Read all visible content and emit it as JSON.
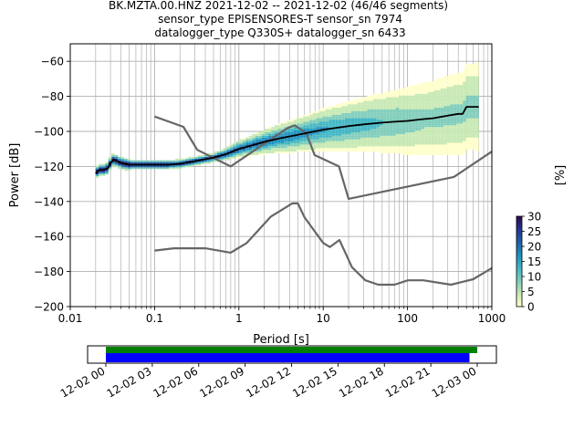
{
  "title_lines": [
    "BK.MZTA.00.HNZ   2021-12-02 -- 2021-12-02  (46/46 segments)",
    "sensor_type EPISENSORES-T sensor_sn 7974",
    "datalogger_type Q330S+ datalogger_sn 6433"
  ],
  "colors": {
    "noise_model": "#666666",
    "mean": "#000000",
    "green_bar": "#008000",
    "blue_bar": "#0000ff",
    "grid": "#b0b0b0",
    "colormap": [
      "#ffffcc",
      "#c7e9b4",
      "#7fcdbb",
      "#41b6c4",
      "#1d91c0",
      "#225ea8",
      "#253494",
      "#2c0a4b"
    ]
  },
  "chart_data": [
    {
      "type": "heatmap",
      "chart_kind": "probabilistic power spectral density",
      "xlabel": "Period [s]",
      "ylabel": "Power [dB]",
      "x_scale": "log",
      "xlim": [
        0.01,
        1000
      ],
      "ylim": [
        -200,
        -50
      ],
      "xticks": [
        0.01,
        0.1,
        1,
        10,
        100,
        1000
      ],
      "xtick_labels": [
        "0.01",
        "0.1",
        "1",
        "10",
        "100",
        "1000"
      ],
      "yticks": [
        -200,
        -180,
        -160,
        -140,
        -120,
        -100,
        -80,
        -60
      ],
      "ytick_labels": [
        "−200",
        "−180",
        "−160",
        "−140",
        "−120",
        "−100",
        "−80",
        "−60"
      ],
      "grid": true,
      "colorbar": {
        "label": "[%]",
        "range": [
          0,
          30
        ],
        "ticks": [
          0,
          5,
          10,
          15,
          20,
          25,
          30
        ],
        "tick_labels": [
          "0",
          "5",
          "10",
          "15",
          "20",
          "25",
          "30"
        ]
      },
      "series": [
        {
          "role": "mean",
          "x": [
            0.02,
            0.022,
            0.025,
            0.028,
            0.03,
            0.033,
            0.036,
            0.04,
            0.05,
            0.07,
            0.1,
            0.15,
            0.2,
            0.3,
            0.5,
            0.7,
            1,
            2,
            3,
            5,
            7,
            10,
            20,
            30,
            50,
            70,
            100,
            150,
            200,
            300,
            400,
            450,
            500,
            600,
            700
          ],
          "y": [
            -124,
            -122,
            -122,
            -121,
            -118,
            -116,
            -117,
            -118,
            -119,
            -119,
            -119,
            -119,
            -118.5,
            -117,
            -115,
            -113,
            -110,
            -106,
            -104,
            -102,
            -100.5,
            -99,
            -97,
            -96,
            -95,
            -94.5,
            -94,
            -93,
            -92.5,
            -91,
            -90,
            -90,
            -86,
            -86,
            -86
          ]
        },
        {
          "role": "high-noise-model",
          "x": [
            0.1,
            0.22,
            0.32,
            0.8,
            3.8,
            4.6,
            6.3,
            7.9,
            15.4,
            20,
            354.8,
            1000
          ],
          "y": [
            -91.5,
            -97.4,
            -110.5,
            -120,
            -98,
            -96.5,
            -101,
            -113.5,
            -120,
            -138.5,
            -126,
            -111.5
          ]
        },
        {
          "role": "low-noise-model",
          "x": [
            0.1,
            0.17,
            0.4,
            0.8,
            1.24,
            2.4,
            4.3,
            5,
            6,
            10,
            12,
            15.6,
            21.9,
            31.6,
            45,
            70,
            101,
            154,
            328,
            600,
            1000
          ],
          "y": [
            -168,
            -166.7,
            -166.7,
            -169.2,
            -163.7,
            -148.6,
            -141.1,
            -141.1,
            -149,
            -163.7,
            -166,
            -162,
            -177.5,
            -185,
            -187.5,
            -187.5,
            -185,
            -185,
            -187.5,
            -184.4,
            -178
          ]
        }
      ],
      "density_note": "color = probability [%] of power at each period"
    },
    {
      "type": "timeline",
      "xlim": [
        "2021-12-01 22:30",
        "2021-12-03 01:30"
      ],
      "xtick_labels": [
        "12-02 00",
        "12-02 03",
        "12-02 06",
        "12-02 09",
        "12-02 12",
        "12-02 15",
        "12-02 18",
        "12-02 21",
        "12-03 00"
      ],
      "bars": [
        {
          "role": "data coverage",
          "color": "green",
          "start": "12-02 00",
          "end": "12-03 00"
        },
        {
          "role": "used in PPSD",
          "color": "blue",
          "start": "12-02 00",
          "end": "12-02 23:30"
        }
      ]
    }
  ]
}
